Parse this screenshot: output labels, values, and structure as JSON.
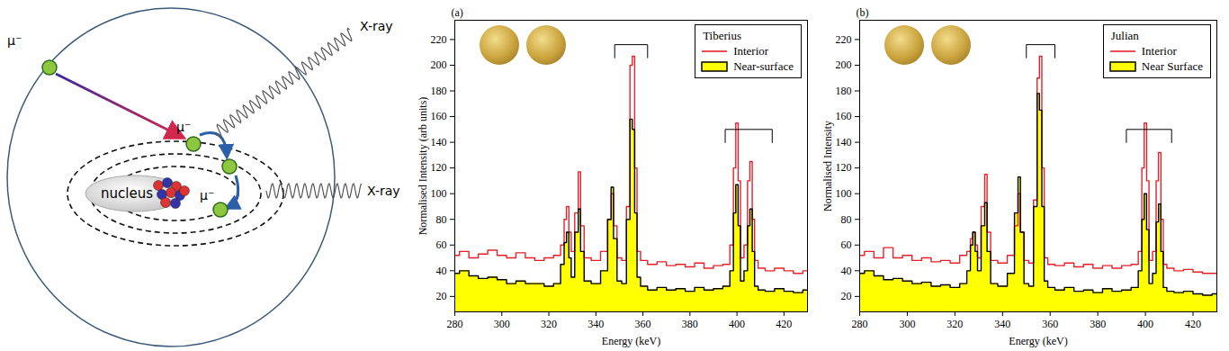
{
  "diagram": {
    "muon_labels": [
      "μ⁻",
      "μ⁻",
      "μ⁻"
    ],
    "xray_labels": [
      "X-ray",
      "X-ray"
    ],
    "nucleus_label": "nucleus"
  },
  "chart_data": [
    {
      "type": "line",
      "title": "(a)",
      "legend_title": "Tiberius",
      "legend": "upper right",
      "x_label": "Energy (keV)",
      "y_label": "Normalised Intensity (arb units)",
      "xlim": [
        280,
        430
      ],
      "xticks": [
        280,
        300,
        320,
        340,
        360,
        380,
        400,
        420
      ],
      "ylim": [
        8,
        235
      ],
      "yticks": [
        20,
        40,
        60,
        80,
        100,
        120,
        140,
        160,
        180,
        200,
        220
      ],
      "x": [
        280,
        284,
        288,
        292,
        296,
        300,
        304,
        308,
        312,
        316,
        320,
        324,
        326,
        327,
        328,
        329,
        330,
        332,
        333,
        334,
        336,
        340,
        344,
        346,
        347,
        348,
        350,
        352,
        354,
        355,
        356,
        357,
        358,
        360,
        364,
        368,
        372,
        376,
        380,
        384,
        388,
        392,
        396,
        398,
        399,
        400,
        401,
        402,
        404,
        405,
        406,
        407,
        408,
        410,
        414,
        418,
        422,
        426,
        430
      ],
      "series": [
        {
          "name": "Interior",
          "type": "line",
          "color": "#e8202a",
          "line_style": "solid",
          "values": [
            52,
            55,
            50,
            53,
            56,
            52,
            50,
            54,
            50,
            48,
            50,
            52,
            60,
            80,
            90,
            70,
            55,
            85,
            117,
            75,
            50,
            48,
            55,
            80,
            100,
            75,
            50,
            48,
            90,
            200,
            207,
            120,
            55,
            48,
            45,
            47,
            44,
            45,
            43,
            46,
            42,
            44,
            45,
            60,
            120,
            155,
            110,
            50,
            60,
            110,
            125,
            80,
            48,
            42,
            40,
            42,
            40,
            38,
            40
          ]
        },
        {
          "name": "Near-surface",
          "type": "area",
          "color": "#ffff00",
          "values": [
            38,
            40,
            36,
            34,
            35,
            33,
            30,
            32,
            30,
            30,
            28,
            30,
            45,
            62,
            70,
            50,
            35,
            70,
            88,
            55,
            32,
            30,
            40,
            80,
            105,
            65,
            32,
            30,
            80,
            158,
            150,
            85,
            35,
            28,
            25,
            27,
            25,
            26,
            24,
            27,
            25,
            26,
            28,
            40,
            85,
            107,
            75,
            32,
            40,
            75,
            88,
            55,
            28,
            25,
            24,
            26,
            24,
            23,
            25
          ]
        }
      ],
      "brackets": [
        {
          "x": [
            348,
            362
          ],
          "y": 216
        },
        {
          "x": [
            395,
            415
          ],
          "y": 150
        }
      ]
    },
    {
      "type": "line",
      "title": "(b)",
      "legend_title": "Julian",
      "legend": "upper right",
      "x_label": "Energy (keV)",
      "y_label": "Normalised Intensity",
      "xlim": [
        280,
        430
      ],
      "xticks": [
        280,
        300,
        320,
        340,
        360,
        380,
        400,
        420
      ],
      "ylim": [
        8,
        235
      ],
      "yticks": [
        20,
        40,
        60,
        80,
        100,
        120,
        140,
        160,
        180,
        200,
        220
      ],
      "x": [
        280,
        284,
        288,
        292,
        296,
        300,
        304,
        308,
        312,
        316,
        320,
        324,
        326,
        327,
        328,
        329,
        330,
        332,
        333,
        334,
        336,
        340,
        344,
        346,
        347,
        348,
        350,
        352,
        354,
        355,
        356,
        357,
        358,
        360,
        364,
        368,
        372,
        376,
        380,
        384,
        388,
        392,
        396,
        398,
        399,
        400,
        401,
        402,
        404,
        405,
        406,
        407,
        408,
        410,
        414,
        418,
        422,
        426,
        430
      ],
      "series": [
        {
          "name": "Interior",
          "type": "line",
          "color": "#e8202a",
          "line_style": "solid",
          "values": [
            52,
            55,
            50,
            58,
            50,
            52,
            48,
            50,
            47,
            48,
            46,
            52,
            55,
            65,
            70,
            60,
            50,
            90,
            115,
            70,
            48,
            46,
            52,
            75,
            100,
            70,
            48,
            46,
            95,
            190,
            207,
            120,
            50,
            45,
            44,
            46,
            43,
            45,
            42,
            44,
            42,
            44,
            45,
            55,
            120,
            155,
            110,
            48,
            55,
            110,
            132,
            80,
            45,
            42,
            40,
            41,
            39,
            38,
            38
          ]
        },
        {
          "name": "Near Surface",
          "type": "area",
          "color": "#ffff00",
          "values": [
            38,
            40,
            36,
            33,
            34,
            32,
            30,
            31,
            28,
            29,
            27,
            30,
            40,
            60,
            70,
            55,
            40,
            75,
            93,
            55,
            30,
            28,
            38,
            85,
            113,
            70,
            30,
            28,
            90,
            178,
            165,
            90,
            32,
            27,
            25,
            27,
            24,
            25,
            23,
            26,
            24,
            25,
            27,
            40,
            80,
            100,
            72,
            30,
            38,
            78,
            92,
            55,
            27,
            24,
            23,
            24,
            22,
            21,
            22
          ]
        }
      ],
      "brackets": [
        {
          "x": [
            350,
            362
          ],
          "y": 216
        },
        {
          "x": [
            392,
            411
          ],
          "y": 150
        }
      ]
    }
  ]
}
